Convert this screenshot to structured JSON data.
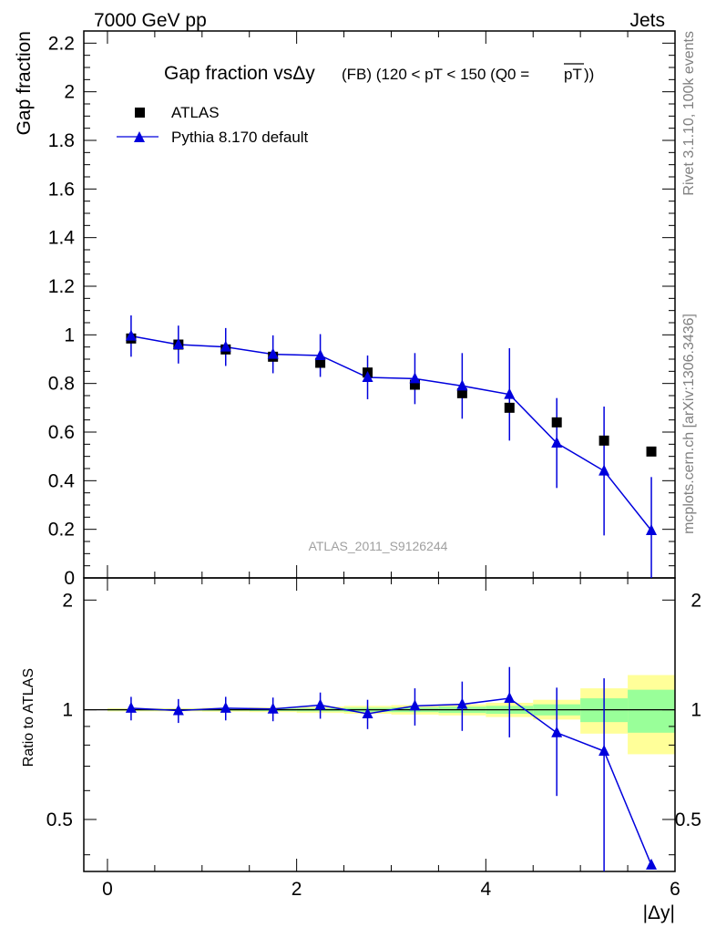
{
  "header": {
    "left": "7000 GeV pp",
    "right": "Jets"
  },
  "side_labels": {
    "top": "Rivet 3.1.10,  100k events",
    "bottom": "mcplots.cern.ch [arXiv:1306.3436]"
  },
  "chart_data": [
    {
      "type": "scatter",
      "title_main": "Gap fraction vsΔy",
      "title_detail": "(FB) (120 < pT < 150 (Q0 =",
      "title_overline": "pT",
      "title_end": "))",
      "ylabel": "Gap fraction",
      "xlim": [
        -0.25,
        6.0
      ],
      "ylim": [
        0,
        2.25
      ],
      "y_ticks": [
        0,
        0.2,
        0.4,
        0.6,
        0.8,
        1,
        1.2,
        1.4,
        1.6,
        1.8,
        2,
        2.2
      ],
      "y_tick_labels": [
        "0",
        "0.2",
        "0.4",
        "0.6",
        "0.8",
        "1",
        "1.2",
        "1.4",
        "1.6",
        "1.8",
        "2",
        "2.2"
      ],
      "watermark": "ATLAS_2011_S9126244",
      "legend_position": "top-left",
      "series": [
        {
          "name": "ATLAS",
          "color": "#000000",
          "marker": "square",
          "x": [
            0.25,
            0.75,
            1.25,
            1.75,
            2.25,
            2.75,
            3.25,
            3.75,
            4.25,
            4.75,
            5.25,
            5.75
          ],
          "y": [
            0.985,
            0.96,
            0.94,
            0.91,
            0.885,
            0.845,
            0.795,
            0.76,
            0.7,
            0.64,
            0.565,
            0.52
          ]
        },
        {
          "name": "Pythia 8.170 default",
          "color": "#0000dd",
          "marker": "triangle",
          "x": [
            0.25,
            0.75,
            1.25,
            1.75,
            2.25,
            2.75,
            3.25,
            3.75,
            4.25,
            4.75,
            5.25,
            5.75
          ],
          "y": [
            0.995,
            0.96,
            0.95,
            0.92,
            0.915,
            0.825,
            0.82,
            0.79,
            0.755,
            0.555,
            0.44,
            0.195
          ],
          "yerr": [
            0.085,
            0.078,
            0.078,
            0.078,
            0.088,
            0.09,
            0.105,
            0.135,
            0.19,
            0.185,
            0.265,
            0.22
          ]
        }
      ]
    },
    {
      "type": "scatter",
      "ylabel": "Ratio to ATLAS",
      "xlabel": "|Δy|",
      "xlim": [
        -0.25,
        6.0
      ],
      "ylim": [
        0.36,
        2.3
      ],
      "y_tick_labels": [
        "0.5",
        "1",
        "2"
      ],
      "y_ticks": [
        0.5,
        1,
        2
      ],
      "x_tick_labels": [
        "0",
        "2",
        "4",
        "6"
      ],
      "x_ticks": [
        0,
        2,
        4,
        6
      ],
      "bands": {
        "x_edges": [
          0,
          0.5,
          1,
          1.5,
          2,
          2.5,
          3,
          3.5,
          4,
          4.5,
          5,
          5.5,
          6
        ],
        "yellow_lo": [
          0.99,
          0.99,
          0.988,
          0.985,
          0.98,
          0.975,
          0.97,
          0.965,
          0.955,
          0.94,
          0.86,
          0.755
        ],
        "yellow_hi": [
          1.01,
          1.01,
          1.012,
          1.015,
          1.02,
          1.025,
          1.03,
          1.035,
          1.045,
          1.065,
          1.145,
          1.245
        ],
        "green_lo": [
          0.995,
          0.995,
          0.994,
          0.992,
          0.99,
          0.987,
          0.985,
          0.98,
          0.975,
          0.965,
          0.925,
          0.865
        ],
        "green_hi": [
          1.005,
          1.005,
          1.006,
          1.008,
          1.01,
          1.013,
          1.015,
          1.02,
          1.025,
          1.035,
          1.075,
          1.135
        ],
        "yellow_color": "#ffff99",
        "green_color": "#99ff99"
      },
      "series": [
        {
          "name": "Pythia 8.170 default",
          "color": "#0000dd",
          "x": [
            0.25,
            0.75,
            1.25,
            1.75,
            2.25,
            2.75,
            3.25,
            3.75,
            4.25,
            4.75,
            5.25,
            5.75
          ],
          "y": [
            1.01,
            0.995,
            1.01,
            1.005,
            1.03,
            0.975,
            1.025,
            1.035,
            1.075,
            0.865,
            0.77,
            0.375
          ],
          "yerr_lo": [
            0.075,
            0.075,
            0.075,
            0.075,
            0.085,
            0.09,
            0.12,
            0.16,
            0.235,
            0.285,
            0.45,
            0.0
          ],
          "yerr_hi": [
            0.075,
            0.075,
            0.075,
            0.075,
            0.085,
            0.09,
            0.12,
            0.16,
            0.235,
            0.285,
            0.45,
            0.0
          ]
        }
      ]
    }
  ],
  "legend": {
    "atlas": "ATLAS",
    "pythia": "Pythia 8.170 default"
  }
}
